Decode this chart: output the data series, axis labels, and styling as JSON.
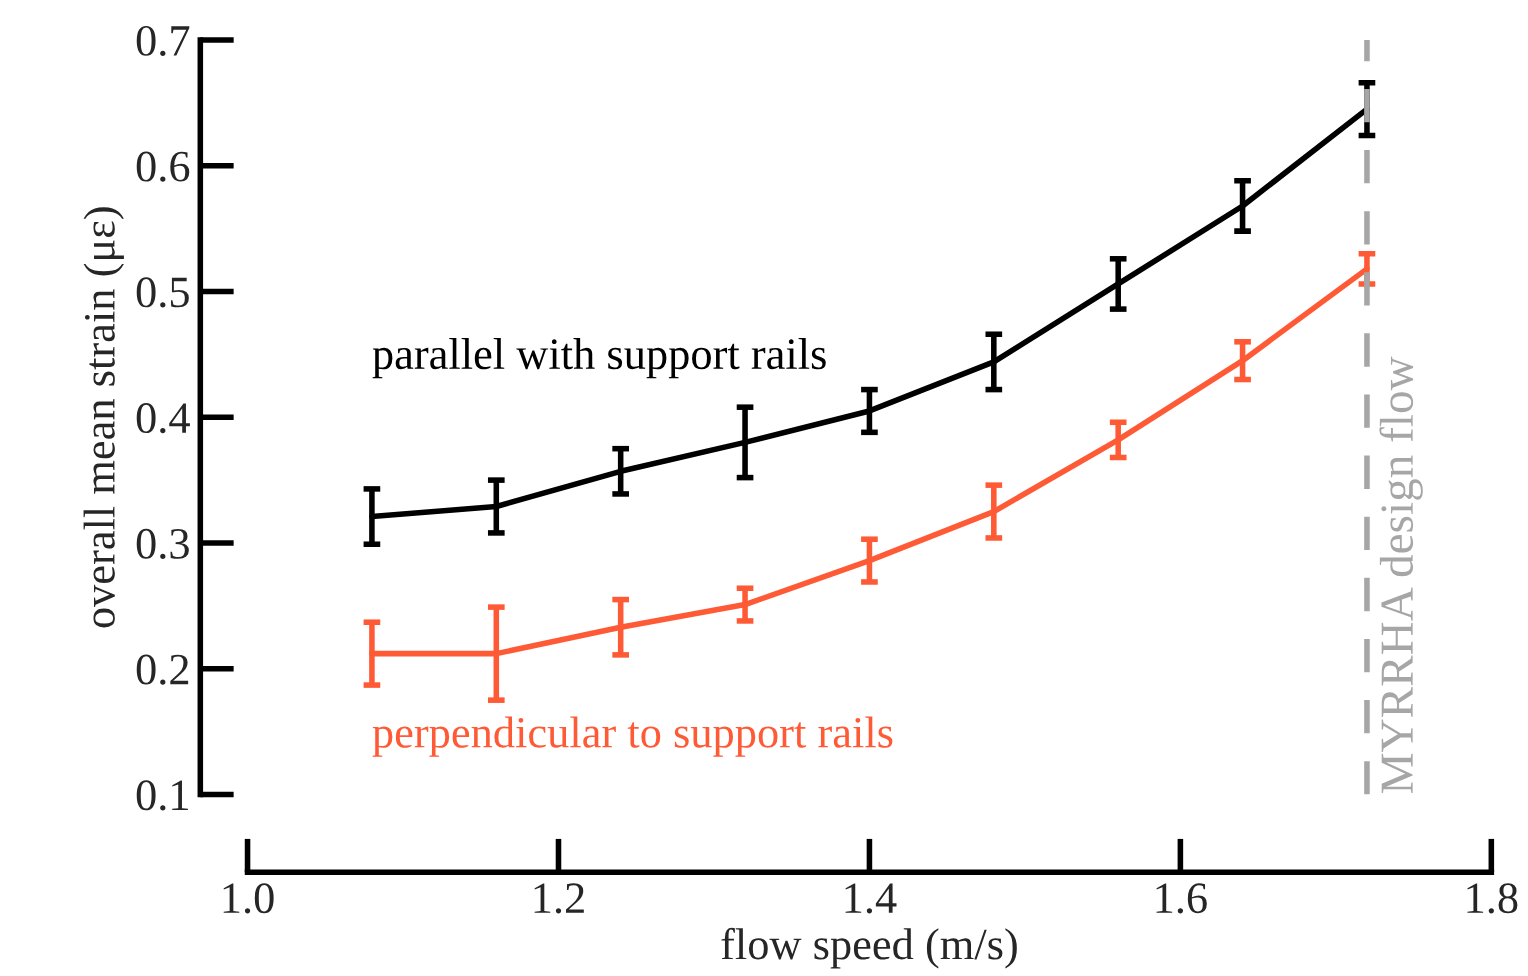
{
  "chart_data": {
    "type": "line",
    "xlabel": "flow speed (m/s)",
    "ylabel": "overall mean strain (με)",
    "x": [
      1.08,
      1.16,
      1.24,
      1.32,
      1.4,
      1.48,
      1.56,
      1.64,
      1.72
    ],
    "series": [
      {
        "name": "parallel with support rails",
        "color": "#000000",
        "values": [
          0.321,
          0.329,
          0.357,
          0.38,
          0.405,
          0.444,
          0.506,
          0.568,
          0.645
        ],
        "errors": [
          0.022,
          0.021,
          0.018,
          0.028,
          0.017,
          0.022,
          0.02,
          0.02,
          0.021
        ]
      },
      {
        "name": "perpendicular to support rails",
        "color": "#ff5a36",
        "values": [
          0.212,
          0.212,
          0.233,
          0.251,
          0.286,
          0.325,
          0.382,
          0.445,
          0.518
        ],
        "errors": [
          0.025,
          0.037,
          0.022,
          0.013,
          0.017,
          0.021,
          0.014,
          0.015,
          0.012
        ]
      }
    ],
    "xlim": [
      1.0,
      1.8
    ],
    "xticks": [
      {
        "value": 1.0,
        "label": "1.0"
      },
      1.2,
      1.4,
      1.6,
      1.8
    ],
    "ylim": [
      0.1,
      0.7
    ],
    "yticks": [
      0.1,
      0.2,
      0.3,
      0.4,
      0.5,
      0.6,
      0.7
    ],
    "ref_lines": [
      {
        "axis": "x",
        "value": 1.72,
        "label": "MYRRHA design flow",
        "color": "#a6a6a6",
        "line_style": "dashed"
      }
    ],
    "grid": false,
    "legend": false,
    "marker": "none",
    "line_style": "solid"
  }
}
